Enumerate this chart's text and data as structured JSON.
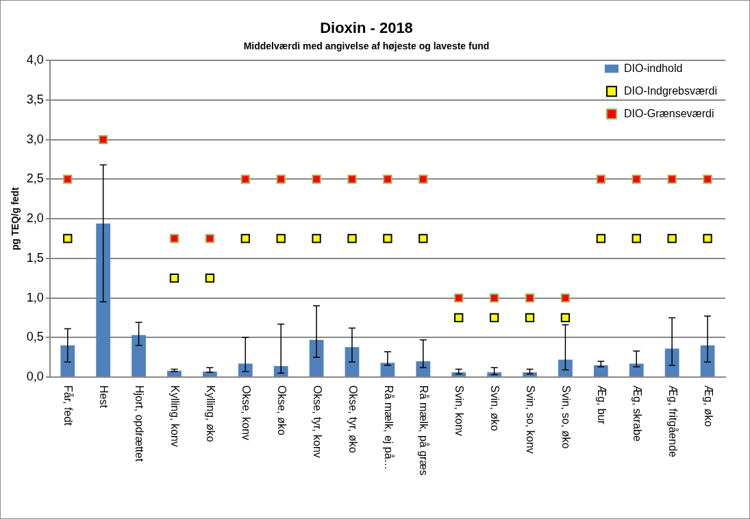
{
  "chart_data": {
    "type": "bar",
    "title": "Dioxin - 2018",
    "subtitle": "Middelværdi med angivelse af højeste og laveste fund",
    "ylabel": "pg TEQ/g fedt",
    "categories": [
      "Får, fedt",
      "Hest",
      "Hjort, opdrættet",
      "Kylling, konv",
      "Kylling, øko",
      "Okse, konv",
      "Okse, øko",
      "Okse, tyr, konv",
      "Okse, tyr, øko",
      "Rå mælk, ej på…",
      "Rå mælk, på græs",
      "Svin, konv",
      "Svin, øko",
      "Svin, so, konv",
      "Svin, so, øko",
      "Æg, bur",
      "Æg, skrabe",
      "Æg, fritgående",
      "Æg, øko"
    ],
    "series": [
      {
        "name": "DIO-indhold",
        "color": "#4f81bd",
        "values": [
          0.4,
          1.94,
          0.53,
          0.08,
          0.07,
          0.17,
          0.14,
          0.47,
          0.38,
          0.18,
          0.2,
          0.06,
          0.06,
          0.06,
          0.22,
          0.15,
          0.17,
          0.36,
          0.4
        ],
        "errors": [
          [
            0.19,
            0.61
          ],
          [
            0.95,
            2.68
          ],
          [
            0.4,
            0.69
          ],
          [
            0.07,
            0.1
          ],
          [
            0.06,
            0.12
          ],
          [
            0.07,
            0.5
          ],
          [
            0.05,
            0.67
          ],
          [
            0.25,
            0.9
          ],
          [
            0.19,
            0.62
          ],
          [
            0.15,
            0.32
          ],
          [
            0.12,
            0.47
          ],
          [
            0.04,
            0.1
          ],
          [
            0.03,
            0.12
          ],
          [
            0.04,
            0.1
          ],
          [
            0.09,
            0.66
          ],
          [
            0.13,
            0.2
          ],
          [
            0.13,
            0.33
          ],
          [
            0.15,
            0.75
          ],
          [
            0.19,
            0.77
          ]
        ]
      },
      {
        "name": "DIO-Indgrebsværdi",
        "type": "scatter",
        "color": "#ffff00",
        "marker": "square",
        "values": [
          1.75,
          null,
          null,
          1.25,
          1.25,
          1.75,
          1.75,
          1.75,
          1.75,
          1.75,
          1.75,
          0.75,
          0.75,
          0.75,
          0.75,
          1.75,
          1.75,
          1.75,
          1.75
        ]
      },
      {
        "name": "DIO-Grænseværdi",
        "type": "scatter",
        "color": "#ff0000",
        "marker": "square",
        "values": [
          2.5,
          3.0,
          null,
          1.75,
          1.75,
          2.5,
          2.5,
          2.5,
          2.5,
          2.5,
          2.5,
          1.0,
          1.0,
          1.0,
          1.0,
          2.5,
          2.5,
          2.5,
          2.5
        ]
      }
    ],
    "ylim": [
      0,
      4
    ],
    "yticks": [
      {
        "value": 0,
        "label": "0,0"
      },
      {
        "value": 0.5,
        "label": "0,5"
      },
      {
        "value": 1,
        "label": "1,0"
      },
      {
        "value": 1.5,
        "label": "1,5"
      },
      {
        "value": 2,
        "label": "2,0"
      },
      {
        "value": 2.5,
        "label": "2,5"
      },
      {
        "value": 3,
        "label": "3,0"
      },
      {
        "value": 3.5,
        "label": "3,5"
      },
      {
        "value": 4,
        "label": "4,0"
      }
    ],
    "grid": "y",
    "legend": "top right"
  }
}
